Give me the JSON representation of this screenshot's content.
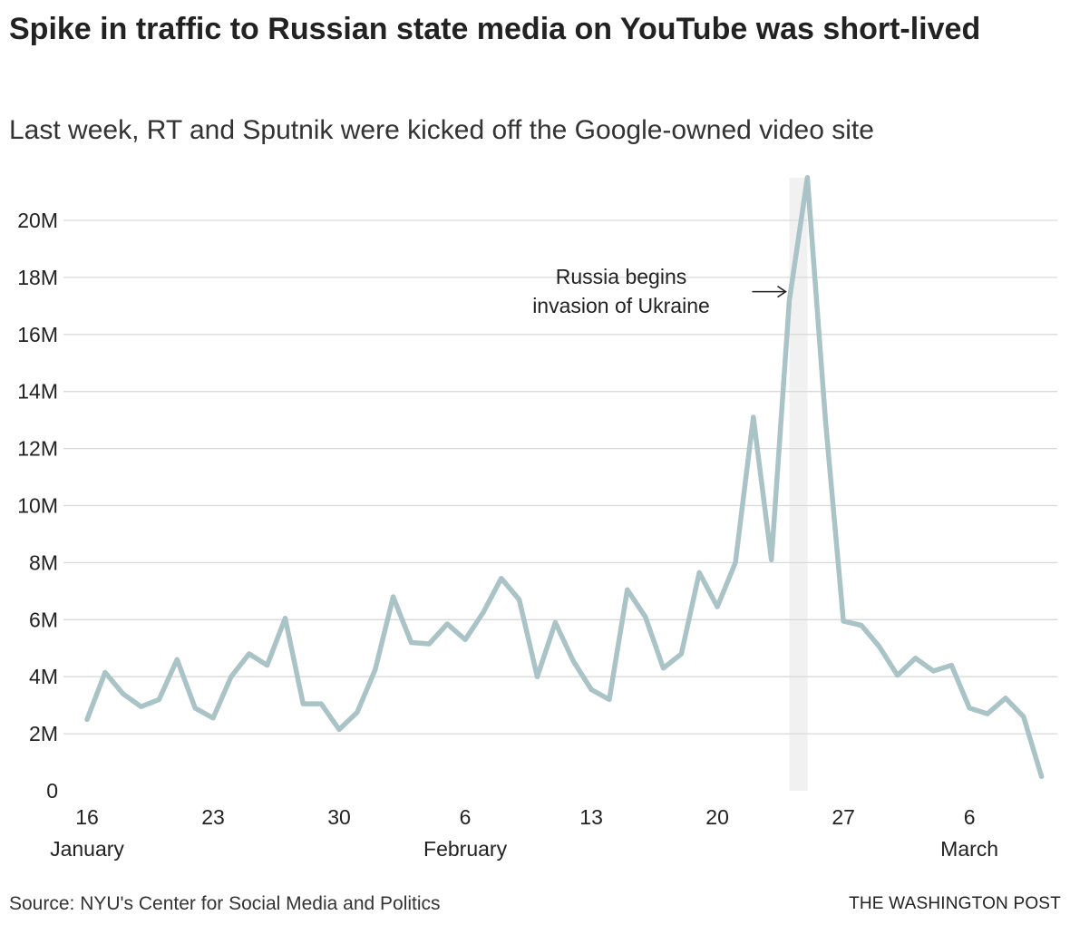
{
  "title": "Spike in traffic to Russian state media on YouTube was short-lived",
  "subtitle": "Last week, RT and Sputnik were kicked off the Google-owned video site",
  "source": "Source: NYU's Center for Social Media and Politics",
  "credit": "THE WASHINGTON POST",
  "colors": {
    "line": "#aac3c7",
    "highlight": "#f1f1f1",
    "grid": "#d9d9d9",
    "text": "#222222"
  },
  "chart_data": {
    "type": "line",
    "title": "Spike in traffic to Russian state media on YouTube was short-lived",
    "subtitle": "Last week, RT and Sputnik were kicked off the Google-owned video site",
    "xlabel": "",
    "ylabel": "",
    "x_start": "2022-01-16",
    "ylim": [
      0,
      21500000
    ],
    "grid": true,
    "y_ticks": [
      {
        "value": 0,
        "label": "0"
      },
      {
        "value": 2000000,
        "label": "2M"
      },
      {
        "value": 4000000,
        "label": "4M"
      },
      {
        "value": 6000000,
        "label": "6M"
      },
      {
        "value": 8000000,
        "label": "8M"
      },
      {
        "value": 10000000,
        "label": "10M"
      },
      {
        "value": 12000000,
        "label": "12M"
      },
      {
        "value": 14000000,
        "label": "14M"
      },
      {
        "value": 16000000,
        "label": "16M"
      },
      {
        "value": 18000000,
        "label": "18M"
      },
      {
        "value": 20000000,
        "label": "20M"
      }
    ],
    "x_ticks": [
      {
        "day": 0,
        "label": "16",
        "sublabel": "January"
      },
      {
        "day": 7,
        "label": "23",
        "sublabel": ""
      },
      {
        "day": 14,
        "label": "30",
        "sublabel": ""
      },
      {
        "day": 21,
        "label": "6",
        "sublabel": "February"
      },
      {
        "day": 28,
        "label": "13",
        "sublabel": ""
      },
      {
        "day": 35,
        "label": "20",
        "sublabel": ""
      },
      {
        "day": 42,
        "label": "27",
        "sublabel": ""
      },
      {
        "day": 49,
        "label": "6",
        "sublabel": "March"
      }
    ],
    "highlight_day": 39.5,
    "annotation": {
      "lines": [
        "Russia begins",
        "invasion of Ukraine"
      ],
      "target_day": 39.4,
      "target_value": 17500000
    },
    "series": [
      {
        "name": "",
        "values": [
          2500000,
          4150000,
          3400000,
          2950000,
          3200000,
          4600000,
          2900000,
          2550000,
          4000000,
          4800000,
          4400000,
          6050000,
          3050000,
          3050000,
          2150000,
          2750000,
          4250000,
          6800000,
          5200000,
          5150000,
          5850000,
          5300000,
          6250000,
          7450000,
          6700000,
          4000000,
          5900000,
          4550000,
          3550000,
          3200000,
          7050000,
          6100000,
          4300000,
          4800000,
          7650000,
          6450000,
          8000000,
          13100000,
          8100000,
          17200000,
          21500000,
          13000000,
          5950000,
          5800000,
          5050000,
          4050000,
          4650000,
          4200000,
          4400000,
          2900000,
          2700000,
          3250000,
          2600000,
          500000
        ]
      }
    ]
  }
}
